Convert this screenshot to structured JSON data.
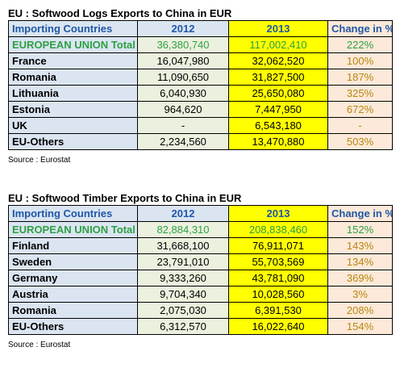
{
  "tables": [
    {
      "title": "EU : Softwood Logs Exports to China in EUR",
      "headers": [
        "Importing Countries",
        "2012",
        "2013",
        "Change in %"
      ],
      "rows": [
        {
          "name": "EUROPEAN UNION Total",
          "v2012": "36,380,740",
          "v2013": "117,002,410",
          "change": "222%"
        },
        {
          "name": "France",
          "v2012": "16,047,980",
          "v2013": "32,062,520",
          "change": "100%"
        },
        {
          "name": "Romania",
          "v2012": "11,090,650",
          "v2013": "31,827,500",
          "change": "187%"
        },
        {
          "name": "Lithuania",
          "v2012": "6,040,930",
          "v2013": "25,650,080",
          "change": "325%"
        },
        {
          "name": "Estonia",
          "v2012": "964,620",
          "v2013": "7,447,950",
          "change": "672%"
        },
        {
          "name": "UK",
          "v2012": "-",
          "v2013": "6,543,180",
          "change": "-"
        },
        {
          "name": "EU-Others",
          "v2012": "2,234,560",
          "v2013": "13,470,880",
          "change": "503%"
        }
      ],
      "source": "Source : Eurostat"
    },
    {
      "title": "EU : Softwood Timber Exports to China in EUR",
      "headers": [
        "Importing Countries",
        "2012",
        "2013",
        "Change in %"
      ],
      "rows": [
        {
          "name": "EUROPEAN UNION Total",
          "v2012": "82,884,310",
          "v2013": "208,838,460",
          "change": "152%"
        },
        {
          "name": "Finland",
          "v2012": "31,668,100",
          "v2013": "76,911,071",
          "change": "143%"
        },
        {
          "name": "Sweden",
          "v2012": "23,791,010",
          "v2013": "55,703,569",
          "change": "134%"
        },
        {
          "name": "Germany",
          "v2012": "9,333,260",
          "v2013": "43,781,090",
          "change": "369%"
        },
        {
          "name": "Austria",
          "v2012": "9,704,340",
          "v2013": "10,028,560",
          "change": "3%"
        },
        {
          "name": "Romania",
          "v2012": "2,075,030",
          "v2013": "6,391,530",
          "change": "208%"
        },
        {
          "name": "EU-Others",
          "v2012": "6,312,570",
          "v2013": "16,022,640",
          "change": "154%"
        }
      ],
      "source": "Source : Eurostat"
    }
  ]
}
